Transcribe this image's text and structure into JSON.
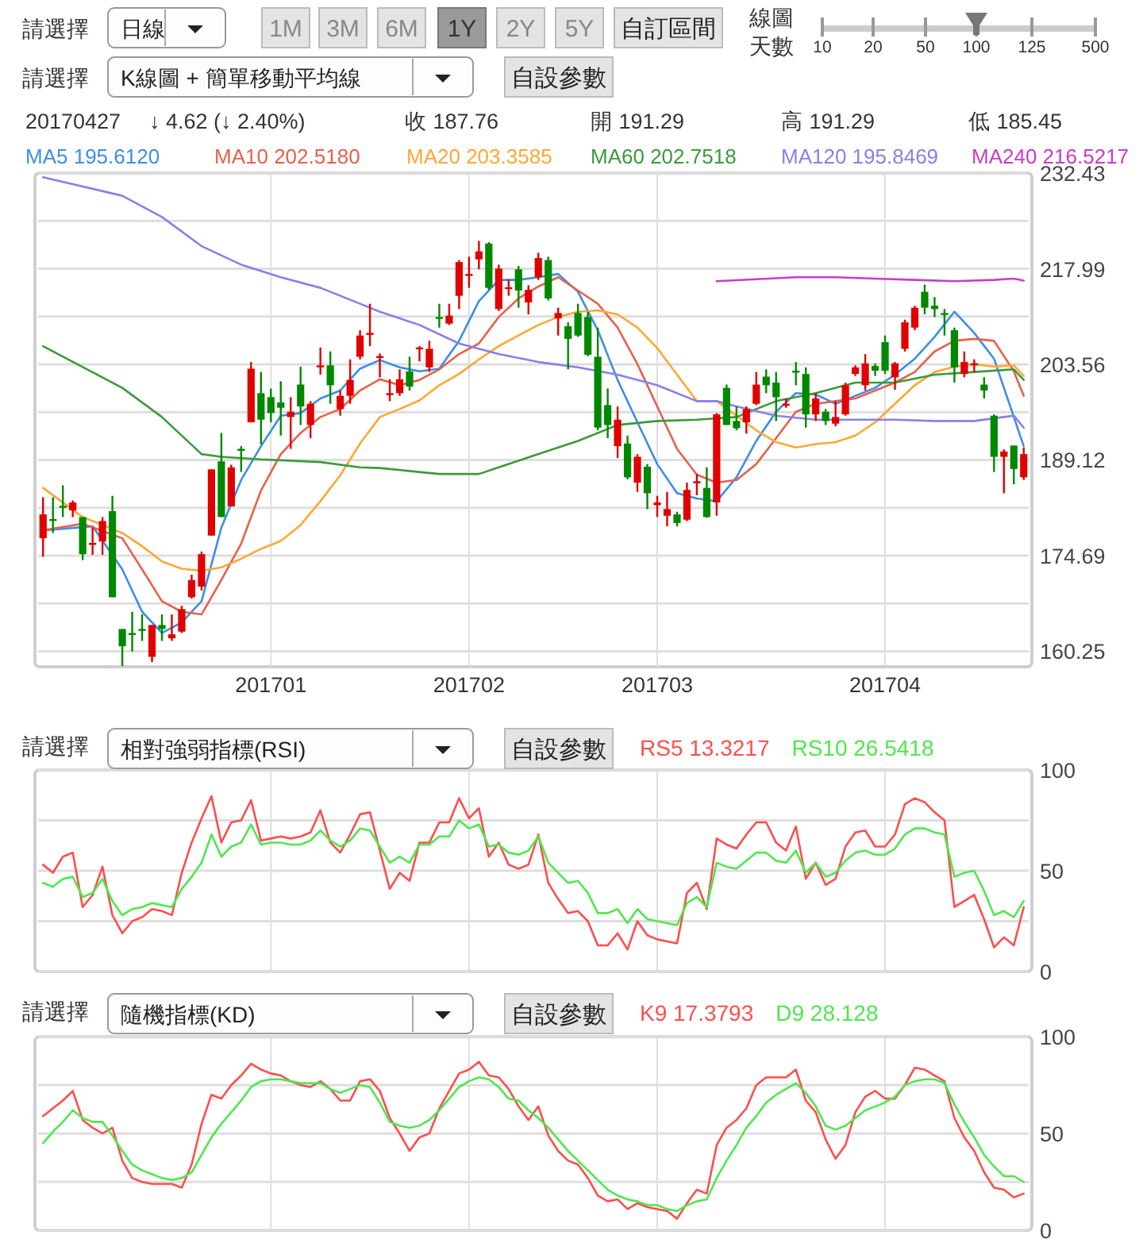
{
  "chart_data": [
    {
      "type": "candlestick",
      "categories": [
        null,
        null,
        null,
        null,
        null,
        null,
        null,
        null,
        null,
        null,
        null,
        null,
        null,
        null,
        null,
        null,
        null,
        null,
        null,
        null,
        null,
        null,
        null,
        "201701",
        null,
        null,
        null,
        null,
        null,
        null,
        null,
        null,
        null,
        null,
        null,
        null,
        null,
        null,
        null,
        null,
        null,
        null,
        null,
        "201702",
        null,
        null,
        null,
        null,
        null,
        null,
        null,
        null,
        null,
        null,
        null,
        null,
        null,
        null,
        null,
        null,
        null,
        null,
        "201703",
        null,
        null,
        null,
        null,
        null,
        null,
        null,
        null,
        null,
        null,
        null,
        null,
        null,
        null,
        null,
        null,
        null,
        null,
        null,
        null,
        null,
        null,
        "201704",
        null,
        null,
        null,
        null,
        null,
        null,
        null,
        null,
        null,
        null,
        null,
        null,
        null,
        null
      ],
      "ohlc": [
        [
          177.3,
          183.5,
          174.5,
          180.9
        ],
        [
          180.2,
          183.5,
          178.1,
          180.0
        ],
        [
          182.2,
          185.3,
          180.5,
          181.9
        ],
        [
          181.5,
          183.0,
          180.5,
          182.7
        ],
        [
          180.5,
          180.5,
          174.0,
          174.9
        ],
        [
          176.3,
          178.9,
          174.8,
          176.6
        ],
        [
          176.8,
          180.5,
          174.8,
          179.9
        ],
        [
          181.4,
          183.7,
          168.4,
          168.4
        ],
        [
          163.6,
          163.6,
          158.0,
          161.0
        ],
        [
          163.0,
          166.2,
          160.2,
          162.7
        ],
        [
          163.6,
          165.8,
          161.8,
          163.4
        ],
        [
          159.4,
          164.2,
          158.6,
          164.2
        ],
        [
          164.2,
          165.8,
          161.8,
          163.6
        ],
        [
          162.2,
          165.8,
          161.8,
          162.8
        ],
        [
          163.2,
          167.1,
          163.0,
          166.6
        ],
        [
          168.4,
          171.8,
          168.2,
          171.0
        ],
        [
          170.0,
          175.3,
          169.4,
          174.9
        ],
        [
          177.7,
          187.7,
          177.7,
          187.7
        ],
        [
          188.9,
          193.2,
          180.5,
          180.5
        ],
        [
          182.1,
          188.4,
          182.1,
          188.0
        ],
        [
          190.8,
          191.2,
          187.3,
          190.5
        ],
        [
          194.8,
          203.9,
          194.8,
          202.9
        ],
        [
          199.2,
          202.4,
          191.5,
          195.2
        ],
        [
          198.6,
          199.9,
          194.8,
          196.2
        ],
        [
          197.8,
          201.0,
          192.8,
          197.0
        ],
        [
          195.6,
          198.6,
          190.8,
          196.4
        ],
        [
          200.5,
          203.2,
          194.4,
          197.2
        ],
        [
          194.4,
          198.0,
          192.4,
          197.6
        ],
        [
          203.1,
          206.1,
          202.0,
          203.4
        ],
        [
          203.4,
          205.5,
          197.6,
          200.4
        ],
        [
          196.8,
          199.6,
          195.8,
          198.8
        ],
        [
          198.8,
          204.3,
          197.6,
          201.2
        ],
        [
          204.7,
          208.7,
          204.3,
          207.9
        ],
        [
          208.0,
          212.7,
          206.3,
          208.3
        ],
        [
          204.6,
          205.2,
          201.6,
          204.8
        ],
        [
          199.0,
          201.3,
          198.0,
          199.2
        ],
        [
          199.2,
          202.8,
          198.8,
          201.3
        ],
        [
          202.5,
          204.7,
          199.6,
          200.2
        ],
        [
          206.0,
          206.3,
          204.0,
          206.1
        ],
        [
          203.1,
          207.1,
          202.4,
          205.9
        ],
        [
          210.7,
          212.7,
          209.1,
          210.5
        ],
        [
          209.7,
          212.7,
          209.5,
          210.9
        ],
        [
          213.9,
          219.3,
          211.9,
          219.0
        ],
        [
          217.0,
          219.8,
          215.1,
          217.2
        ],
        [
          219.4,
          222.2,
          217.9,
          220.6
        ],
        [
          221.8,
          222.0,
          214.8,
          215.1
        ],
        [
          211.9,
          218.6,
          211.6,
          218.0
        ],
        [
          215.0,
          216.4,
          213.9,
          215.2
        ],
        [
          217.9,
          218.4,
          212.1,
          214.7
        ],
        [
          212.9,
          215.5,
          211.1,
          214.8
        ],
        [
          216.7,
          220.4,
          216.3,
          219.6
        ],
        [
          219.3,
          219.8,
          213.2,
          213.5
        ],
        [
          210.5,
          212.1,
          207.9,
          211.3
        ],
        [
          209.3,
          209.9,
          202.8,
          207.4
        ],
        [
          211.3,
          212.7,
          207.7,
          207.9
        ],
        [
          210.7,
          211.5,
          204.8,
          205.0
        ],
        [
          204.7,
          209.1,
          193.6,
          194.0
        ],
        [
          197.4,
          199.9,
          192.4,
          194.4
        ],
        [
          191.2,
          197.2,
          189.4,
          195.2
        ],
        [
          191.6,
          192.8,
          186.2,
          186.5
        ],
        [
          185.7,
          190.0,
          184.3,
          189.6
        ],
        [
          188.1,
          188.5,
          181.7,
          184.1
        ],
        [
          182.3,
          183.7,
          180.5,
          182.7
        ],
        [
          180.7,
          184.3,
          179.1,
          181.7
        ],
        [
          180.9,
          181.3,
          179.1,
          179.6
        ],
        [
          180.1,
          185.7,
          179.9,
          184.6
        ],
        [
          185.6,
          187.0,
          183.8,
          185.9
        ],
        [
          184.9,
          188.0,
          180.4,
          180.5
        ],
        [
          182.7,
          196.2,
          180.7,
          196.0
        ],
        [
          200.0,
          200.5,
          194.4,
          194.4
        ],
        [
          195.0,
          197.2,
          193.6,
          193.9
        ],
        [
          194.8,
          197.2,
          193.1,
          196.8
        ],
        [
          197.6,
          202.4,
          197.4,
          200.5
        ],
        [
          201.7,
          202.8,
          199.2,
          200.4
        ],
        [
          200.8,
          202.4,
          195.0,
          198.6
        ],
        [
          197.4,
          198.4,
          197.0,
          197.6
        ],
        [
          202.6,
          203.9,
          200.4,
          202.3
        ],
        [
          202.1,
          203.1,
          194.0,
          196.0
        ],
        [
          196.0,
          199.2,
          195.0,
          198.4
        ],
        [
          196.4,
          196.8,
          194.4,
          195.0
        ],
        [
          194.6,
          198.0,
          194.2,
          195.6
        ],
        [
          196.0,
          200.8,
          195.8,
          200.4
        ],
        [
          202.1,
          203.4,
          201.8,
          203.1
        ],
        [
          200.4,
          205.1,
          199.6,
          203.7
        ],
        [
          203.3,
          203.7,
          201.8,
          202.6
        ],
        [
          206.9,
          207.9,
          202.1,
          202.6
        ],
        [
          201.6,
          203.9,
          199.7,
          203.7
        ],
        [
          205.9,
          210.3,
          205.5,
          209.9
        ],
        [
          209.1,
          212.4,
          208.7,
          212.1
        ],
        [
          214.5,
          215.6,
          211.1,
          212.1
        ],
        [
          212.4,
          213.7,
          210.7,
          211.9
        ],
        [
          211.3,
          211.9,
          207.9,
          211.1
        ],
        [
          208.7,
          209.1,
          200.8,
          203.1
        ],
        [
          202.1,
          205.5,
          201.6,
          203.9
        ],
        [
          203.4,
          204.3,
          202.4,
          203.7
        ],
        [
          200.5,
          201.6,
          198.4,
          199.6
        ],
        [
          195.8,
          196.0,
          187.3,
          189.6
        ],
        [
          189.6,
          190.7,
          184.1,
          190.4
        ],
        [
          191.29,
          191.29,
          185.45,
          187.76
        ],
        [
          186.5,
          191.0,
          186.1,
          190.0
        ]
      ],
      "series": [
        {
          "name": "MA5 195.6120",
          "type": "line",
          "color": "#3d8ee8",
          "values": [
            178.5,
            null,
            null,
            null,
            null,
            179.1,
            null,
            null,
            172.6,
            null,
            166.2,
            null,
            163.0,
            null,
            164.6,
            null,
            167.8,
            null,
            178.9,
            null,
            186.1,
            null,
            191.2,
            null,
            195.8,
            null,
            196.2,
            null,
            198.4,
            null,
            199.6,
            null,
            202.9,
            null,
            204.2,
            null,
            203.1,
            null,
            202.5,
            null,
            202.9,
            null,
            207.1,
            null,
            213.1,
            null,
            216.3,
            null,
            216.3,
            null,
            216.7,
            null,
            217.2,
            null,
            214.5,
            null,
            208.7,
            null,
            201.2,
            null,
            194.8,
            null,
            188.5,
            null,
            184.1,
            null,
            183.3,
            null,
            182.9,
            null,
            186.5,
            null,
            192.0,
            null,
            196.4,
            null,
            199.2,
            null,
            199.0,
            null,
            197.6,
            null,
            198.8,
            null,
            200.0,
            null,
            202.0,
            null,
            204.4,
            null,
            207.7,
            null,
            211.5,
            null,
            208.3,
            null,
            204.4,
            null,
            195.6,
            191.2
          ]
        },
        {
          "name": "MA10 202.5180",
          "type": "line",
          "color": "#e8604a",
          "values": [
            178.5,
            null,
            null,
            null,
            179.5,
            null,
            null,
            null,
            177.3,
            null,
            172.6,
            null,
            167.8,
            null,
            166.2,
            null,
            165.8,
            null,
            171.0,
            null,
            176.5,
            null,
            184.5,
            null,
            190.0,
            null,
            193.2,
            null,
            195.6,
            null,
            196.8,
            null,
            199.6,
            null,
            201.3,
            null,
            200.4,
            null,
            201.2,
            null,
            202.8,
            null,
            205.1,
            null,
            206.7,
            null,
            210.7,
            null,
            213.5,
            null,
            215.3,
            null,
            216.7,
            null,
            214.7,
            null,
            212.7,
            null,
            209.1,
            null,
            203.6,
            null,
            197.2,
            null,
            190.8,
            null,
            186.9,
            null,
            185.7,
            null,
            186.1,
            null,
            188.5,
            null,
            192.4,
            null,
            196.4,
            null,
            197.6,
            null,
            198.0,
            null,
            198.4,
            null,
            199.6,
            null,
            200.8,
            null,
            202.4,
            null,
            205.5,
            null,
            207.1,
            null,
            207.4,
            null,
            207.1,
            null,
            202.5,
            198.8
          ]
        },
        {
          "name": "MA20 203.3585",
          "type": "line",
          "color": "#ffa733",
          "values": [
            184.9,
            null,
            null,
            null,
            180.5,
            null,
            null,
            null,
            178.1,
            null,
            176.1,
            null,
            173.8,
            null,
            172.7,
            null,
            172.4,
            null,
            172.9,
            null,
            174.2,
            null,
            175.7,
            null,
            176.9,
            null,
            179.3,
            null,
            182.9,
            null,
            186.8,
            null,
            191.6,
            null,
            195.6,
            null,
            196.8,
            null,
            198.1,
            null,
            200.4,
            null,
            202.1,
            null,
            204.3,
            null,
            206.3,
            null,
            207.9,
            null,
            209.5,
            null,
            210.7,
            null,
            211.5,
            null,
            211.7,
            null,
            211.1,
            null,
            209.1,
            null,
            206.0,
            null,
            202.0,
            null,
            198.0,
            null,
            198.0,
            null,
            195.8,
            null,
            193.6,
            null,
            191.8,
            null,
            191.0,
            null,
            191.5,
            null,
            191.8,
            null,
            192.8,
            null,
            194.8,
            null,
            197.6,
            null,
            200.4,
            null,
            202.4,
            null,
            203.2,
            null,
            203.6,
            null,
            203.2,
            null,
            203.4,
            201.8
          ]
        },
        {
          "name": "MA60 202.7518",
          "type": "line",
          "color": "#3a9a3a",
          "values": [
            206.3,
            null,
            null,
            null,
            null,
            null,
            null,
            null,
            200.0,
            null,
            null,
            null,
            195.6,
            null,
            null,
            null,
            190.0,
            null,
            189.6,
            null,
            null,
            null,
            189.2,
            null,
            null,
            null,
            null,
            null,
            188.8,
            null,
            null,
            null,
            188.0,
            null,
            187.9,
            null,
            null,
            null,
            null,
            null,
            187.0,
            null,
            null,
            null,
            187.0,
            null,
            188.0,
            null,
            null,
            null,
            190.0,
            null,
            null,
            null,
            192.0,
            null,
            null,
            null,
            194.4,
            null,
            null,
            null,
            195.0,
            null,
            null,
            null,
            195.2,
            null,
            null,
            null,
            195.6,
            null,
            null,
            null,
            198.0,
            null,
            null,
            null,
            199.2,
            null,
            null,
            null,
            200.8,
            null,
            null,
            null,
            200.8,
            null,
            null,
            null,
            202.0,
            null,
            null,
            null,
            202.4,
            null,
            null,
            null,
            202.8,
            201.2
          ]
        },
        {
          "name": "MA120 195.8469",
          "type": "line",
          "color": "#8a7fe8",
          "values": [
            231.8,
            null,
            null,
            null,
            null,
            null,
            null,
            null,
            229.0,
            null,
            null,
            null,
            225.8,
            null,
            null,
            null,
            221.4,
            null,
            null,
            null,
            218.6,
            null,
            null,
            null,
            216.7,
            null,
            null,
            null,
            215.1,
            null,
            null,
            null,
            212.7,
            null,
            211.5,
            null,
            null,
            null,
            209.5,
            null,
            null,
            null,
            206.7,
            null,
            null,
            null,
            205.1,
            null,
            null,
            null,
            203.9,
            null,
            null,
            null,
            203.1,
            null,
            null,
            null,
            202.0,
            null,
            null,
            null,
            200.4,
            null,
            null,
            null,
            198.0,
            null,
            198.0,
            null,
            197.2,
            null,
            null,
            null,
            195.8,
            null,
            null,
            null,
            195.2,
            null,
            null,
            null,
            195.2,
            null,
            null,
            null,
            195.2,
            null,
            null,
            null,
            195.0,
            null,
            null,
            null,
            195.0,
            null,
            null,
            null,
            195.8,
            194.0
          ]
        },
        {
          "name": "MA240 216.5217",
          "type": "line",
          "color": "#c83cc8",
          "values": [
            null,
            null,
            null,
            null,
            null,
            null,
            null,
            null,
            null,
            null,
            null,
            null,
            null,
            null,
            null,
            null,
            null,
            null,
            null,
            null,
            null,
            null,
            null,
            null,
            null,
            null,
            null,
            null,
            null,
            null,
            null,
            null,
            null,
            null,
            null,
            null,
            null,
            null,
            null,
            null,
            null,
            null,
            null,
            null,
            null,
            null,
            null,
            null,
            null,
            null,
            null,
            null,
            null,
            null,
            null,
            null,
            null,
            null,
            null,
            null,
            null,
            null,
            null,
            null,
            null,
            null,
            null,
            null,
            216.1,
            null,
            null,
            null,
            216.4,
            null,
            null,
            null,
            216.7,
            null,
            null,
            null,
            216.7,
            null,
            null,
            null,
            216.5,
            null,
            null,
            null,
            216.3,
            null,
            null,
            null,
            216.1,
            null,
            null,
            null,
            216.3,
            null,
            216.5,
            216.2
          ]
        }
      ],
      "ylim": [
        157.9,
        232.43
      ],
      "yticks": [
        160.25,
        {
          "value": 167.47,
          "label": null
        },
        174.69,
        {
          "value": 181.9,
          "label": null
        },
        189.12,
        {
          "value": 196.34,
          "label": null
        },
        203.56,
        {
          "value": 210.78,
          "label": null
        },
        217.99,
        {
          "value": 225.21,
          "label": null
        },
        232.43
      ],
      "grid": true,
      "legend": "top",
      "annotations": [
        "請選擇",
        "日線",
        "1M",
        "3M",
        "6M",
        "1Y",
        "2Y",
        "5Y",
        "自訂區間",
        "線圖",
        "天數",
        "10",
        "20",
        "50",
        "100",
        "125",
        "500",
        "請選擇",
        "K線圖 + 簡單移動平均線",
        "自設參數",
        "20170427",
        "↓ 4.62 (↓ 2.40%)",
        "收 187.76",
        "開 191.29",
        "高 191.29",
        "低 185.45"
      ]
    },
    {
      "type": "line",
      "categories": [
        null,
        null,
        null,
        null,
        null,
        null,
        null,
        null,
        null,
        null,
        null,
        null,
        null,
        null,
        null,
        null,
        null,
        null,
        null,
        null,
        null,
        null,
        null,
        "201701",
        null,
        null,
        null,
        null,
        null,
        null,
        null,
        null,
        null,
        null,
        null,
        null,
        null,
        null,
        null,
        null,
        null,
        null,
        null,
        "201702",
        null,
        null,
        null,
        null,
        null,
        null,
        null,
        null,
        null,
        null,
        null,
        null,
        null,
        null,
        null,
        null,
        null,
        null,
        "201703",
        null,
        null,
        null,
        null,
        null,
        null,
        null,
        null,
        null,
        null,
        null,
        null,
        null,
        null,
        null,
        null,
        null,
        null,
        null,
        null,
        null,
        null,
        "201704",
        null,
        null,
        null,
        null,
        null,
        null,
        null,
        null,
        null,
        null,
        null,
        null,
        null,
        null
      ],
      "tick_labels": "y",
      "series": [
        {
          "name": "RS5 13.3217",
          "color": "#ff4d4d",
          "values": [
            53,
            49,
            57,
            59,
            32,
            38,
            52,
            28,
            19,
            25,
            27,
            31,
            30,
            28,
            49,
            64,
            76,
            87,
            64,
            74,
            75,
            85,
            65,
            66,
            67,
            66,
            67,
            69,
            80,
            64,
            59,
            68,
            78,
            79,
            60,
            41,
            49,
            45,
            64,
            64,
            74,
            74,
            86,
            76,
            81,
            57,
            64,
            53,
            51,
            53,
            68,
            44,
            36,
            29,
            30,
            25,
            13,
            13,
            19,
            11,
            25,
            18,
            16,
            15,
            14,
            39,
            44,
            31,
            66,
            63,
            61,
            68,
            74,
            74,
            64,
            60,
            72,
            46,
            54,
            43,
            46,
            62,
            69,
            70,
            62,
            62,
            68,
            83,
            86,
            84,
            79,
            75,
            32,
            35,
            38,
            26,
            12,
            17,
            13,
            32
          ]
        },
        {
          "name": "RS10 26.5418",
          "color": "#4de84d",
          "values": [
            44,
            42,
            46,
            47,
            37,
            39,
            46,
            35,
            28,
            31,
            32,
            34,
            33,
            32,
            41,
            47,
            54,
            68,
            57,
            62,
            64,
            73,
            63,
            64,
            64,
            63,
            63,
            65,
            70,
            65,
            62,
            65,
            71,
            70,
            62,
            54,
            57,
            54,
            63,
            63,
            67,
            67,
            75,
            71,
            73,
            62,
            63,
            59,
            58,
            60,
            67,
            54,
            49,
            44,
            45,
            39,
            29,
            29,
            31,
            24,
            31,
            26,
            25,
            24,
            23,
            34,
            37,
            32,
            54,
            52,
            51,
            55,
            59,
            59,
            55,
            54,
            60,
            49,
            54,
            47,
            49,
            55,
            59,
            60,
            58,
            58,
            61,
            68,
            71,
            71,
            69,
            68,
            47,
            49,
            50,
            40,
            28,
            30,
            27,
            35
          ]
        }
      ],
      "ylim": [
        0,
        100
      ],
      "yticks": [
        0,
        {
          "value": 25,
          "label": null
        },
        50,
        {
          "value": 75,
          "label": null
        },
        100
      ],
      "grid": true,
      "legend": "top",
      "annotations": [
        "請選擇",
        "相對強弱指標(RSI)",
        "自設參數"
      ]
    },
    {
      "type": "line",
      "categories": [
        null,
        null,
        null,
        null,
        null,
        null,
        null,
        null,
        null,
        null,
        null,
        null,
        null,
        null,
        null,
        null,
        null,
        null,
        null,
        null,
        null,
        null,
        null,
        "201701",
        null,
        null,
        null,
        null,
        null,
        null,
        null,
        null,
        null,
        null,
        null,
        null,
        null,
        null,
        null,
        null,
        null,
        null,
        null,
        "201702",
        null,
        null,
        null,
        null,
        null,
        null,
        null,
        null,
        null,
        null,
        null,
        null,
        null,
        null,
        null,
        null,
        null,
        null,
        "201703",
        null,
        null,
        null,
        null,
        null,
        null,
        null,
        null,
        null,
        null,
        null,
        null,
        null,
        null,
        null,
        null,
        null,
        null,
        null,
        null,
        null,
        null,
        "201704",
        null,
        null,
        null,
        null,
        null,
        null,
        null,
        null,
        null,
        null,
        null,
        null,
        null,
        null
      ],
      "tick_labels": "y",
      "series": [
        {
          "name": "K9 17.3793",
          "color": "#ff4d4d",
          "values": [
            59,
            63,
            67,
            72,
            57,
            53,
            50,
            53,
            36,
            27,
            25,
            24,
            24,
            24,
            22,
            34,
            55,
            70,
            68,
            75,
            80,
            86,
            83,
            81,
            80,
            77,
            75,
            74,
            77,
            73,
            67,
            67,
            77,
            78,
            72,
            58,
            50,
            41,
            48,
            50,
            63,
            72,
            81,
            83,
            87,
            80,
            79,
            73,
            64,
            57,
            64,
            49,
            41,
            36,
            34,
            27,
            18,
            15,
            16,
            11,
            14,
            12,
            11,
            10,
            6,
            14,
            21,
            19,
            44,
            53,
            57,
            63,
            75,
            79,
            79,
            79,
            83,
            67,
            61,
            47,
            37,
            44,
            61,
            69,
            72,
            68,
            68,
            75,
            84,
            83,
            80,
            77,
            58,
            48,
            41,
            30,
            22,
            21,
            17,
            19
          ]
        },
        {
          "name": "D9 28.128",
          "color": "#4de84d",
          "values": [
            45,
            51,
            56,
            62,
            58,
            56,
            56,
            49,
            41,
            34,
            31,
            29,
            27,
            26,
            27,
            30,
            39,
            48,
            55,
            61,
            67,
            74,
            77,
            78,
            78,
            77,
            76,
            76,
            76,
            73,
            71,
            73,
            75,
            74,
            66,
            56,
            54,
            53,
            54,
            57,
            62,
            68,
            74,
            77,
            79,
            78,
            74,
            68,
            67,
            62,
            58,
            53,
            47,
            41,
            36,
            31,
            26,
            21,
            18,
            16,
            15,
            13,
            13,
            11,
            10,
            13,
            15,
            16,
            27,
            36,
            44,
            53,
            59,
            66,
            70,
            73,
            76,
            71,
            64,
            54,
            52,
            54,
            58,
            62,
            64,
            66,
            69,
            75,
            77,
            78,
            78,
            76,
            65,
            56,
            48,
            39,
            33,
            28,
            28,
            25
          ]
        }
      ],
      "ylim": [
        0,
        100
      ],
      "yticks": [
        0,
        {
          "value": 25,
          "label": null
        },
        50,
        {
          "value": 75,
          "label": null
        },
        100
      ],
      "grid": true,
      "legend": "top",
      "annotations": [
        "請選擇",
        "隨機指標(KD)",
        "自設參數"
      ]
    }
  ]
}
